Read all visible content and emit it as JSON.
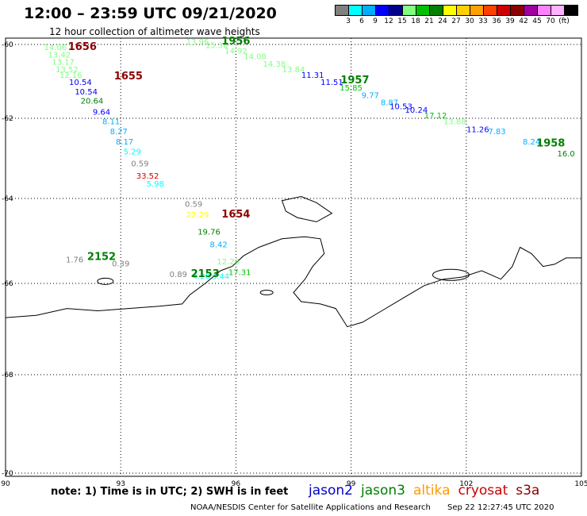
{
  "header": {
    "title": "12:00 – 23:59 UTC 09/21/2020",
    "subtitle": "12 hour collection of altimeter wave heights"
  },
  "colorbar": {
    "colors": [
      "#808080",
      "#00ffff",
      "#00b0ff",
      "#0000ff",
      "#00008b",
      "#80ff80",
      "#00c000",
      "#008000",
      "#ffff00",
      "#ffd000",
      "#ffa000",
      "#ff4000",
      "#d00000",
      "#8b0000",
      "#a000a0",
      "#ff80ff",
      "#ffb0ff",
      "#000000"
    ],
    "labels": [
      "3",
      "6",
      "9",
      "12",
      "15",
      "18",
      "21",
      "24",
      "27",
      "30",
      "33",
      "36",
      "39",
      "42",
      "45",
      "70",
      "(ft)"
    ]
  },
  "axes": {
    "x_ticks": [
      "90",
      "93",
      "96",
      "99",
      "102",
      "105"
    ],
    "y_ticks": [
      "-60",
      "-62",
      "-64",
      "-66",
      "-68",
      "-70"
    ]
  },
  "tracks": [
    {
      "label": "1656",
      "color": "#8b0000",
      "points": [
        {
          "lon": 91.3,
          "lat": -60.15,
          "v": "14.06",
          "c": "#80ff80"
        },
        {
          "lon": 91.4,
          "lat": -60.35,
          "v": "13.42",
          "c": "#80ff80"
        },
        {
          "lon": 91.5,
          "lat": -60.55,
          "v": "13.17",
          "c": "#80ff80"
        },
        {
          "lon": 91.6,
          "lat": -60.75,
          "v": "13.52",
          "c": "#80ff80"
        },
        {
          "lon": 91.7,
          "lat": -60.9,
          "v": "12.16",
          "c": "#80ff80"
        },
        {
          "lon": 91.95,
          "lat": -61.1,
          "v": "10.54",
          "c": "#0000ff"
        },
        {
          "lon": 92.1,
          "lat": -61.35,
          "v": "10.54",
          "c": "#0000ff"
        },
        {
          "lon": 92.25,
          "lat": -61.6,
          "v": "20.64",
          "c": "#008000"
        },
        {
          "lon": 92.5,
          "lat": -61.9,
          "v": "9.64",
          "c": "#0000ff"
        },
        {
          "lon": 92.75,
          "lat": -62.15,
          "v": "8.11",
          "c": "#00b0ff"
        },
        {
          "lon": 92.95,
          "lat": -62.4,
          "v": "8.27",
          "c": "#00b0ff"
        },
        {
          "lon": 93.1,
          "lat": -62.65,
          "v": "8.17",
          "c": "#00b0ff"
        },
        {
          "lon": 93.3,
          "lat": -62.9,
          "v": "5.29",
          "c": "#00ffff"
        },
        {
          "lon": 93.5,
          "lat": -63.2,
          "v": "0.59",
          "c": "#808080"
        },
        {
          "lon": 93.7,
          "lat": -63.5,
          "v": "33.52",
          "c": "#d00000"
        },
        {
          "lon": 93.9,
          "lat": -63.7,
          "v": "5.98",
          "c": "#00ffff"
        }
      ]
    },
    {
      "label": "1956",
      "color": "#008000",
      "points": [
        {
          "lon": 95.0,
          "lat": -60.0,
          "v": "13.96",
          "c": "#80ff80"
        },
        {
          "lon": 95.5,
          "lat": -60.1,
          "v": "15.36",
          "c": "#80ff80"
        },
        {
          "lon": 96.0,
          "lat": -60.25,
          "v": "14.92",
          "c": "#80ff80"
        },
        {
          "lon": 96.5,
          "lat": -60.4,
          "v": "14.08",
          "c": "#80ff80"
        },
        {
          "lon": 97.0,
          "lat": -60.6,
          "v": "14.38",
          "c": "#80ff80"
        },
        {
          "lon": 97.5,
          "lat": -60.75,
          "v": "13.84",
          "c": "#80ff80"
        },
        {
          "lon": 98.0,
          "lat": -60.9,
          "v": "11.31",
          "c": "#0000ff"
        },
        {
          "lon": 98.5,
          "lat": -61.1,
          "v": "11.51",
          "c": "#0000ff"
        },
        {
          "lon": 99.0,
          "lat": -61.25,
          "v": "15.85",
          "c": "#00c000"
        },
        {
          "lon": 99.5,
          "lat": -61.45,
          "v": "9.77",
          "c": "#00b0ff"
        },
        {
          "lon": 100.0,
          "lat": -61.65,
          "v": "8.87",
          "c": "#00b0ff"
        },
        {
          "lon": 100.3,
          "lat": -61.75,
          "v": "10.53",
          "c": "#0000ff"
        },
        {
          "lon": 100.7,
          "lat": -61.85,
          "v": "10.24",
          "c": "#0000ff"
        },
        {
          "lon": 101.2,
          "lat": -62.0,
          "v": "17.12",
          "c": "#00c000"
        },
        {
          "lon": 101.7,
          "lat": -62.15,
          "v": "13.88",
          "c": "#80ff80"
        },
        {
          "lon": 102.3,
          "lat": -62.35,
          "v": "11.26",
          "c": "#0000ff"
        },
        {
          "lon": 102.8,
          "lat": -62.4,
          "v": "7.83",
          "c": "#00b0ff"
        }
      ]
    },
    {
      "label": "1957",
      "color": "#008000",
      "points": []
    },
    {
      "label": "1655",
      "color": "#8b0000",
      "points": []
    },
    {
      "label": "1958",
      "color": "#008000",
      "points": [
        {
          "lon": 103.7,
          "lat": -62.65,
          "v": "8.24",
          "c": "#00b0ff"
        },
        {
          "lon": 104.6,
          "lat": -62.95,
          "v": "16.0",
          "c": "#008000"
        }
      ]
    },
    {
      "label": "1654",
      "color": "#8b0000",
      "points": [
        {
          "lon": 94.9,
          "lat": -64.2,
          "v": "0.59",
          "c": "#808080"
        },
        {
          "lon": 95.0,
          "lat": -64.45,
          "v": "22.29",
          "c": "#ffff00"
        },
        {
          "lon": 95.3,
          "lat": -64.85,
          "v": "19.76",
          "c": "#008000"
        },
        {
          "lon": 95.55,
          "lat": -65.15,
          "v": "8.42",
          "c": "#00b0ff"
        },
        {
          "lon": 95.8,
          "lat": -65.55,
          "v": "12.26",
          "c": "#80ff80"
        },
        {
          "lon": 96.1,
          "lat": -65.8,
          "v": "17.31",
          "c": "#00c000"
        }
      ]
    },
    {
      "label": "2152",
      "color": "#008000",
      "points": [
        {
          "lon": 91.8,
          "lat": -65.5,
          "v": "1.76",
          "c": "#808080"
        },
        {
          "lon": 93.0,
          "lat": -65.6,
          "v": "0.39",
          "c": "#808080"
        }
      ]
    },
    {
      "label": "2153",
      "color": "#008000",
      "points": [
        {
          "lon": 94.5,
          "lat": -65.85,
          "v": "0.89",
          "c": "#808080"
        },
        {
          "lon": 95.1,
          "lat": -65.9,
          "v": "4.20",
          "c": "#00ffff"
        },
        {
          "lon": 95.6,
          "lat": -65.9,
          "v": "3.44",
          "c": "#00ffff"
        }
      ]
    }
  ],
  "footer": {
    "note": "note: 1) Time is in UTC; 2) SWH is in feet",
    "satellites": [
      {
        "name": "jason2",
        "color": "#0000cc"
      },
      {
        "name": "jason3",
        "color": "#008000"
      },
      {
        "name": "altika",
        "color": "#ff9900"
      },
      {
        "name": "cryosat",
        "color": "#cc0000"
      },
      {
        "name": "s3a",
        "color": "#8b0000"
      }
    ],
    "credit": "NOAA/NESDIS Center for Satellite Applications and Research",
    "timestamp": "Sep 22 12:27:45 UTC 2020"
  }
}
